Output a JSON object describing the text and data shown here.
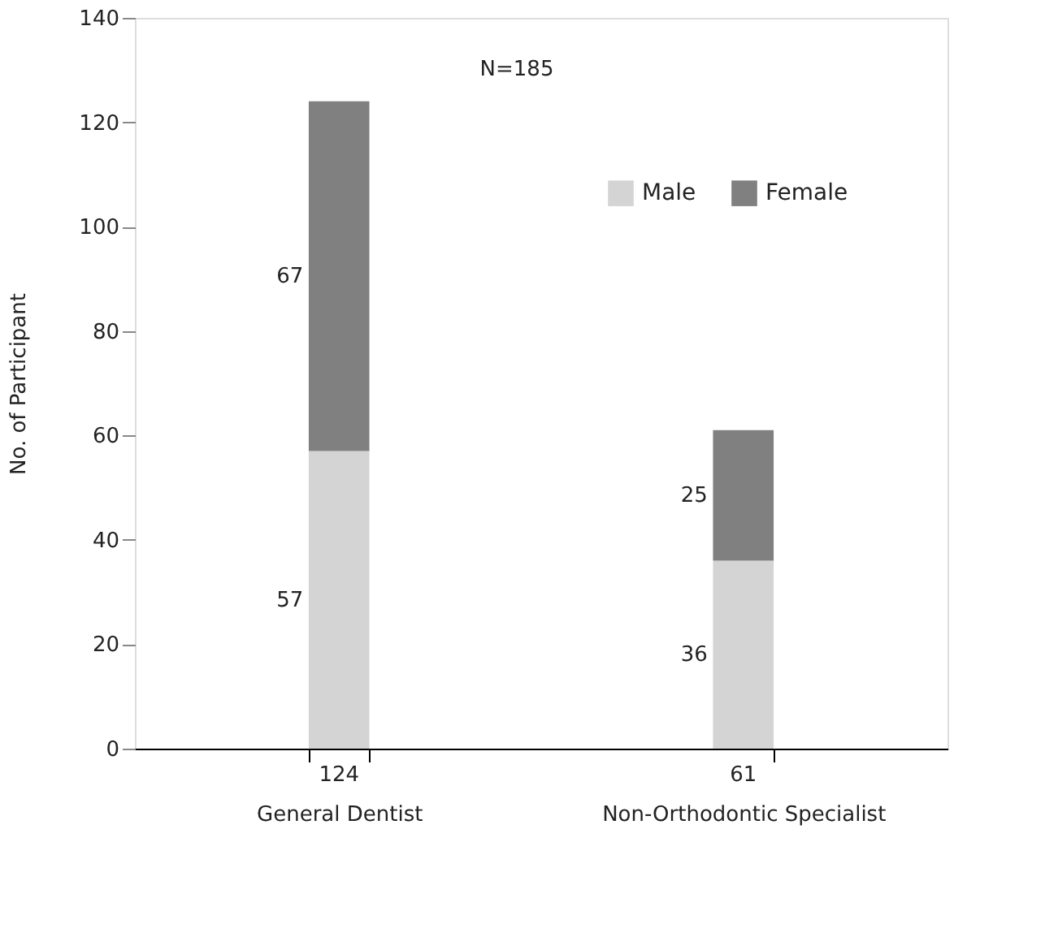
{
  "chart_data": {
    "type": "bar",
    "stacked": true,
    "ylabel": "No. of Participant",
    "categories": [
      "General Dentist",
      "Non-Orthodontic Specialist"
    ],
    "series": [
      {
        "name": "Male",
        "color": "#d4d4d4",
        "values": [
          57,
          36
        ]
      },
      {
        "name": "Female",
        "color": "#808080",
        "values": [
          67,
          25
        ]
      }
    ],
    "totals": [
      "124",
      "61"
    ],
    "data_labels": true,
    "annotations": [
      "N=185"
    ],
    "ylim": [
      0,
      140
    ],
    "yticks": [
      0,
      20,
      40,
      60,
      80,
      100,
      120,
      140
    ],
    "grid": false,
    "legend": "top right"
  }
}
